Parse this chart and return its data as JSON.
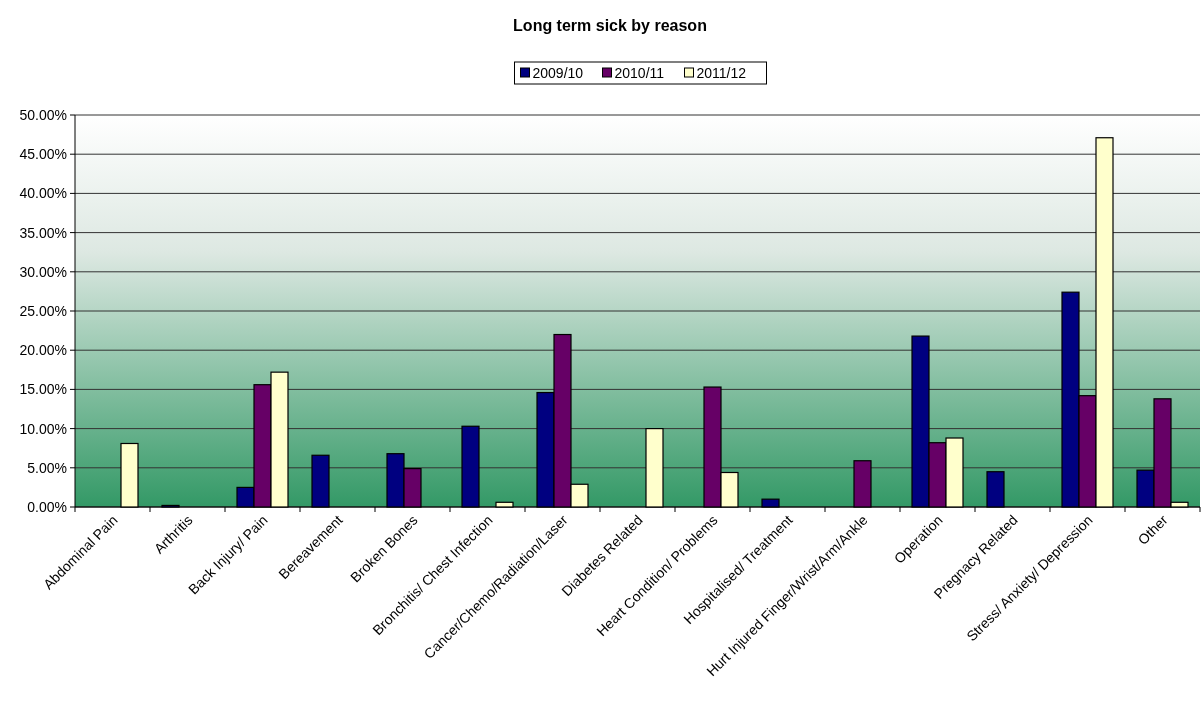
{
  "chart_data": {
    "type": "bar",
    "title": "Long term sick by reason",
    "categories": [
      "Abdominal Pain",
      "Arthritis",
      "Back Injury/ Pain",
      "Bereavement",
      "Broken Bones",
      "Bronchitis/ Chest Infection",
      "Cancer/Chemo/Radiation/Laser",
      "Diabetes Related",
      "Heart Condition/ Problems",
      "Hospitalised/ Treatment",
      "Hurt Injured Finger/Wrist/Arm/Ankle",
      "Operation",
      "Pregnacy Related",
      "Stress/ Anxiety/ Depression",
      "Other"
    ],
    "series": [
      {
        "name": "2009/10",
        "color": "#000080",
        "values": [
          0,
          0.2,
          2.5,
          6.6,
          6.8,
          10.3,
          14.6,
          0,
          0,
          1.0,
          0,
          21.8,
          4.5,
          27.4,
          4.7
        ]
      },
      {
        "name": "2010/11",
        "color": "#660066",
        "values": [
          0,
          0,
          15.6,
          0,
          4.9,
          0,
          22.0,
          0,
          15.3,
          0,
          5.9,
          8.2,
          0,
          14.2,
          13.8
        ]
      },
      {
        "name": "2011/12",
        "color": "#ffffcc",
        "values": [
          8.1,
          0,
          17.2,
          0,
          0,
          0.6,
          2.9,
          10.0,
          4.4,
          0,
          0,
          8.8,
          0,
          47.1,
          0.6
        ]
      }
    ],
    "ylim": [
      0,
      50
    ],
    "yticks": [
      {
        "value": 0,
        "label": "0.00%"
      },
      {
        "value": 5,
        "label": "5.00%"
      },
      {
        "value": 10,
        "label": "10.00%"
      },
      {
        "value": 15,
        "label": "15.00%"
      },
      {
        "value": 20,
        "label": "20.00%"
      },
      {
        "value": 25,
        "label": "25.00%"
      },
      {
        "value": 30,
        "label": "30.00%"
      },
      {
        "value": 35,
        "label": "35.00%"
      },
      {
        "value": 40,
        "label": "40.00%"
      },
      {
        "value": 45,
        "label": "45.00%"
      },
      {
        "value": 50,
        "label": "50.00%"
      }
    ],
    "grid": "y",
    "legend": "top"
  }
}
